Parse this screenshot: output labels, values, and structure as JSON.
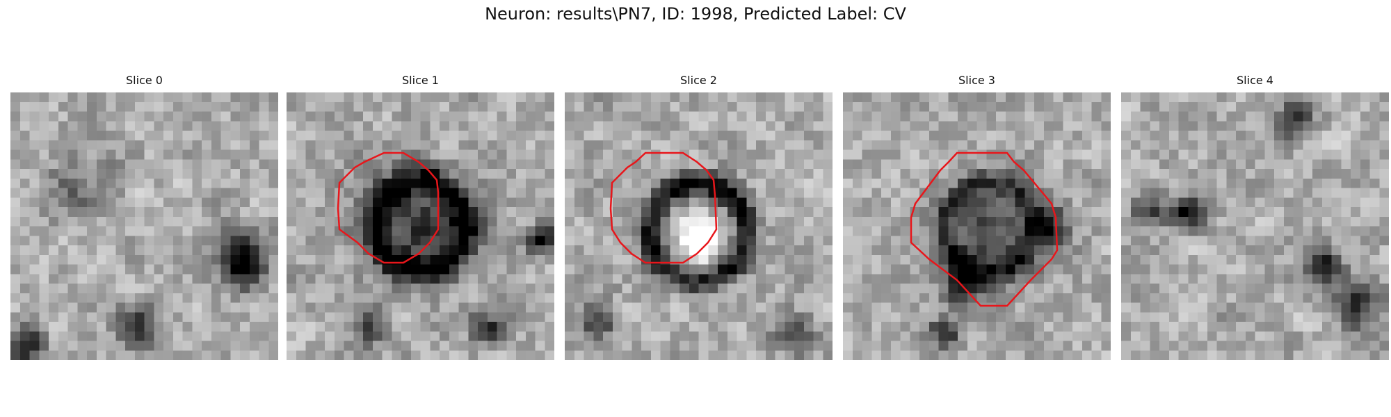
{
  "figure": {
    "title": "Neuron: results\\PN7, ID: 1998, Predicted Label: CV"
  },
  "slices": [
    {
      "title": "Slice 0",
      "has_outline": false,
      "seed": 11,
      "dark_blobs": [
        [
          0.87,
          0.64,
          0.09,
          0.85
        ],
        [
          0.48,
          0.88,
          0.08,
          0.5
        ],
        [
          0.05,
          0.95,
          0.07,
          0.6
        ],
        [
          0.25,
          0.35,
          0.12,
          0.25
        ]
      ]
    },
    {
      "title": "Slice 1",
      "has_outline": true,
      "seed": 23,
      "dark_blobs": [
        [
          0.5,
          0.5,
          0.21,
          0.45
        ],
        [
          0.95,
          0.55,
          0.05,
          0.7
        ],
        [
          0.75,
          0.88,
          0.06,
          0.5
        ],
        [
          0.3,
          0.88,
          0.06,
          0.45
        ]
      ],
      "ring": [
        0.5,
        0.5,
        0.17,
        0.05,
        0.5
      ]
    },
    {
      "title": "Slice 2",
      "has_outline": true,
      "seed": 37,
      "dark_blobs": [
        [
          0.12,
          0.85,
          0.07,
          0.5
        ],
        [
          0.85,
          0.9,
          0.07,
          0.45
        ]
      ],
      "ring": [
        0.5,
        0.52,
        0.18,
        0.05,
        0.65
      ],
      "bright": [
        0.5,
        0.58,
        0.11,
        0.35
      ]
    },
    {
      "title": "Slice 3",
      "has_outline": true,
      "seed": 53,
      "dark_blobs": [
        [
          0.55,
          0.52,
          0.18,
          0.4
        ],
        [
          0.78,
          0.5,
          0.08,
          0.45
        ],
        [
          0.45,
          0.72,
          0.08,
          0.55
        ],
        [
          0.38,
          0.9,
          0.06,
          0.5
        ]
      ],
      "ring": [
        0.55,
        0.5,
        0.17,
        0.04,
        0.35
      ]
    },
    {
      "title": "Slice 4",
      "has_outline": false,
      "seed": 71,
      "dark_blobs": [
        [
          0.25,
          0.45,
          0.06,
          0.6
        ],
        [
          0.75,
          0.65,
          0.08,
          0.6
        ],
        [
          0.88,
          0.8,
          0.08,
          0.55
        ],
        [
          0.65,
          0.1,
          0.07,
          0.45
        ],
        [
          0.1,
          0.45,
          0.06,
          0.45
        ]
      ]
    }
  ],
  "style": {
    "outline_color": "#e8161b",
    "colormap": "gray"
  }
}
